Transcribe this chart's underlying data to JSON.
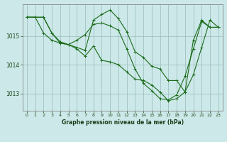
{
  "title": "Graphe pression niveau de la mer (hPa)",
  "bg_color": "#cce8e8",
  "grid_color": "#99bbbb",
  "line_color": "#1a6b1a",
  "xlim": [
    -0.5,
    23.5
  ],
  "ylim": [
    1012.4,
    1016.1
  ],
  "yticks": [
    1013,
    1014,
    1015
  ],
  "xticks": [
    0,
    1,
    2,
    3,
    4,
    5,
    6,
    7,
    8,
    9,
    10,
    11,
    12,
    13,
    14,
    15,
    16,
    17,
    18,
    19,
    20,
    21,
    22,
    23
  ],
  "series": [
    {
      "x": [
        0,
        1,
        2,
        3,
        4,
        5,
        6,
        7,
        8,
        9,
        10,
        11,
        12,
        13,
        14,
        15,
        16,
        17,
        18,
        19,
        20,
        21,
        22,
        23
      ],
      "y": [
        1015.65,
        1015.65,
        1015.1,
        1014.85,
        1014.75,
        1014.7,
        1014.85,
        1015.05,
        1015.4,
        1015.45,
        1015.35,
        1015.2,
        1014.55,
        1013.85,
        1013.35,
        1013.1,
        1012.82,
        1012.78,
        1012.95,
        1013.6,
        1014.55,
        1015.5,
        1015.3,
        1015.3
      ]
    },
    {
      "x": [
        0,
        1,
        2,
        3,
        4,
        5,
        6,
        7,
        8,
        9,
        10,
        11,
        12,
        13,
        14,
        15,
        16,
        17,
        18,
        19,
        20,
        21,
        22,
        23
      ],
      "y": [
        1015.65,
        1015.65,
        1015.65,
        1015.1,
        1014.75,
        1014.7,
        1014.55,
        1014.3,
        1014.65,
        1014.15,
        1014.1,
        1014.0,
        1013.75,
        1013.5,
        1013.45,
        1013.3,
        1013.05,
        1012.75,
        1012.82,
        1013.05,
        1013.65,
        1014.6,
        1015.55,
        1015.3
      ]
    },
    {
      "x": [
        0,
        1,
        2,
        3,
        4,
        5,
        6,
        7,
        8,
        9,
        10,
        11,
        12,
        13,
        14,
        15,
        16,
        17,
        18,
        19,
        20,
        21,
        22,
        23
      ],
      "y": [
        1015.65,
        1015.65,
        1015.65,
        1015.1,
        1014.8,
        1014.7,
        1014.6,
        1014.5,
        1015.55,
        1015.75,
        1015.9,
        1015.6,
        1015.15,
        1014.45,
        1014.25,
        1013.95,
        1013.85,
        1013.45,
        1013.45,
        1013.05,
        1014.85,
        1015.55,
        1015.3,
        1015.3
      ]
    }
  ]
}
